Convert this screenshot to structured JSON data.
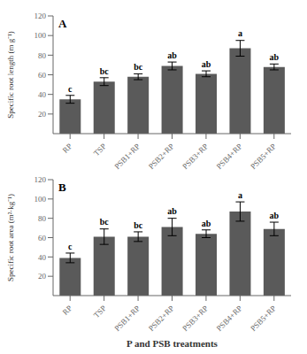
{
  "chart_data": [
    {
      "type": "bar",
      "title": "A",
      "categories": [
        "RP",
        "TSP",
        "PSB1+RP",
        "PSB2+RP",
        "PSB3+RP",
        "PSB4+RP",
        "PSB5+RP"
      ],
      "values": [
        35,
        53,
        58,
        69,
        61,
        87,
        68
      ],
      "errors": [
        4,
        4,
        3,
        4,
        3,
        8,
        3
      ],
      "annotations": [
        "c",
        "bc",
        "bc",
        "ab",
        "ab",
        "a",
        "ab"
      ],
      "color": "#5a5a5a",
      "ylabel": "Specific root length (m g⁻¹)",
      "ylim": [
        0,
        120
      ],
      "yticks": [
        20,
        40,
        60,
        80,
        100,
        120
      ],
      "grid": false
    },
    {
      "type": "bar",
      "title": "B",
      "categories": [
        "RP",
        "TSP",
        "PSB1+RP",
        "PSB2+RP",
        "PSB3+RP",
        "PSB4+RP",
        "PSB5+RP"
      ],
      "values": [
        39,
        61,
        61,
        71,
        64,
        87,
        69
      ],
      "errors": [
        5,
        8,
        5,
        9,
        4,
        10,
        7
      ],
      "annotations": [
        "c",
        "bc",
        "bc",
        "ab",
        "ab",
        "a",
        "ab"
      ],
      "color": "#5a5a5a",
      "ylabel": "Specific root area (m²·kg⁻¹)",
      "xlabel": "P and PSB treatments",
      "ylim": [
        0,
        120
      ],
      "yticks": [
        20,
        40,
        60,
        80,
        100,
        120
      ],
      "grid": false
    }
  ]
}
